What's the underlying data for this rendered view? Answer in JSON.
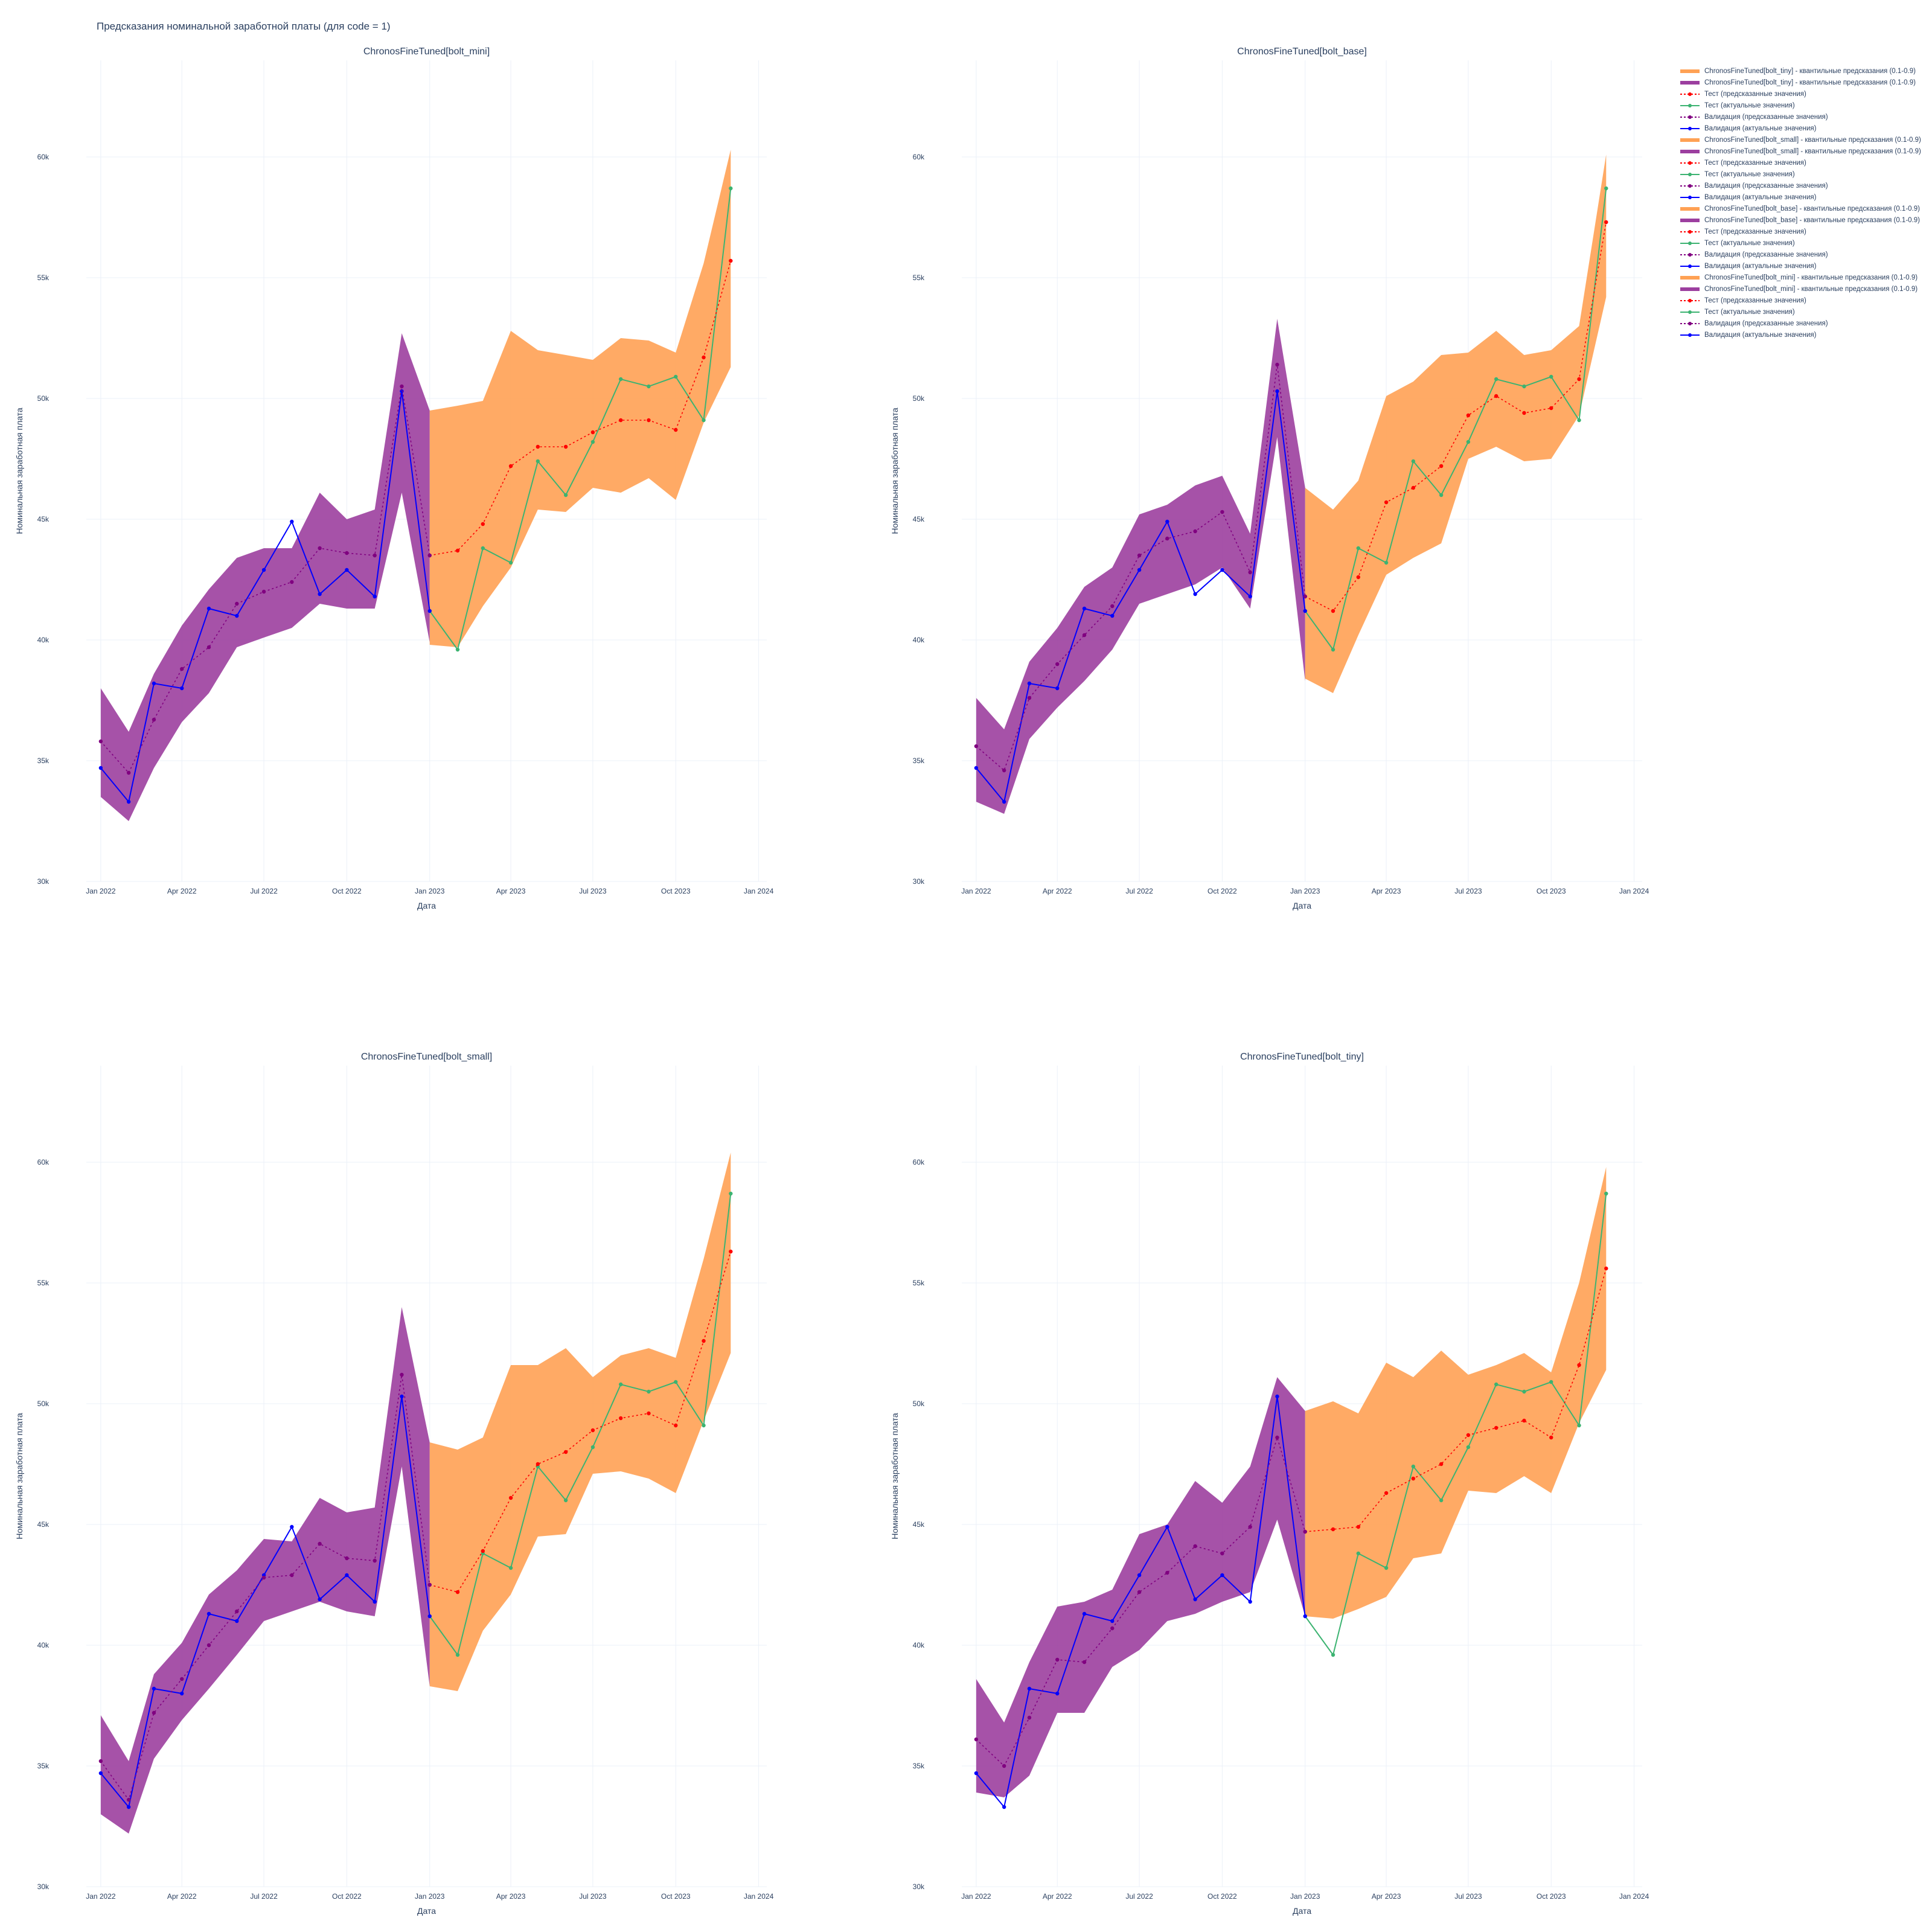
{
  "page_title": "Предсказания номинальной заработной платы (для code = 1)",
  "colors": {
    "validation_actual": "#0000ff",
    "validation_pred": "#800080",
    "validation_band": "#9c3f9f",
    "test_actual": "#3cb371",
    "test_pred": "#ff0000",
    "test_band": "#ffa154",
    "grid": "#ebf0f8",
    "text": "#2a3f5f"
  },
  "legend": [
    {
      "label": "ChronosFineTuned[bolt_tiny] - квантильные предсказания (0.1-0.9)",
      "kind": "band-test"
    },
    {
      "label": "ChronosFineTuned[bolt_tiny] - квантильные предсказания (0.1-0.9)",
      "kind": "band-val"
    },
    {
      "label": "Тест (предсказанные значения)",
      "kind": "test-pred"
    },
    {
      "label": "Тест (актуальные значения)",
      "kind": "test-actual"
    },
    {
      "label": "Валидация (предсказанные значения)",
      "kind": "val-pred"
    },
    {
      "label": "Валидация (актуальные значения)",
      "kind": "val-actual"
    },
    {
      "label": "ChronosFineTuned[bolt_small] - квантильные предсказания (0.1-0.9)",
      "kind": "band-test"
    },
    {
      "label": "ChronosFineTuned[bolt_small] - квантильные предсказания (0.1-0.9)",
      "kind": "band-val"
    },
    {
      "label": "Тест (предсказанные значения)",
      "kind": "test-pred"
    },
    {
      "label": "Тест (актуальные значения)",
      "kind": "test-actual"
    },
    {
      "label": "Валидация (предсказанные значения)",
      "kind": "val-pred"
    },
    {
      "label": "Валидация (актуальные значения)",
      "kind": "val-actual"
    },
    {
      "label": "ChronosFineTuned[bolt_base] - квантильные предсказания (0.1-0.9)",
      "kind": "band-test"
    },
    {
      "label": "ChronosFineTuned[bolt_base] - квантильные предсказания (0.1-0.9)",
      "kind": "band-val"
    },
    {
      "label": "Тест (предсказанные значения)",
      "kind": "test-pred"
    },
    {
      "label": "Тест (актуальные значения)",
      "kind": "test-actual"
    },
    {
      "label": "Валидация (предсказанные значения)",
      "kind": "val-pred"
    },
    {
      "label": "Валидация (актуальные значения)",
      "kind": "val-actual"
    },
    {
      "label": "ChronosFineTuned[bolt_mini] - квантильные предсказания (0.1-0.9)",
      "kind": "band-test"
    },
    {
      "label": "ChronosFineTuned[bolt_mini] - квантильные предсказания (0.1-0.9)",
      "kind": "band-val"
    },
    {
      "label": "Тест (предсказанные значения)",
      "kind": "test-pred"
    },
    {
      "label": "Тест (актуальные значения)",
      "kind": "test-actual"
    },
    {
      "label": "Валидация (предсказанные значения)",
      "kind": "val-pred"
    },
    {
      "label": "Валидация (актуальные значения)",
      "kind": "val-actual"
    }
  ],
  "chart_data": [
    {
      "type": "line",
      "title": "ChronosFineTuned[bolt_mini]",
      "xlabel": "Дата",
      "ylabel": "Номинальная заработная плата",
      "xlim": [
        "2021-12-16",
        "2024-01-10"
      ],
      "ylim": [
        30000,
        64000
      ],
      "x_ticks": [
        "2022-01-01",
        "2022-04-01",
        "2022-07-01",
        "2022-10-01",
        "2023-01-01",
        "2023-04-01",
        "2023-07-01",
        "2023-10-01",
        "2024-01-01"
      ],
      "x_tick_labels": [
        "Jan 2022",
        "Apr 2022",
        "Jul 2022",
        "Oct 2022",
        "Jan 2023",
        "Apr 2023",
        "Jul 2023",
        "Oct 2023",
        "Jan 2024"
      ],
      "y_ticks": [
        30000,
        35000,
        40000,
        45000,
        50000,
        55000,
        60000
      ],
      "y_tick_labels": [
        "30k",
        "35k",
        "40k",
        "45k",
        "50k",
        "55k",
        "60k"
      ],
      "grid": true,
      "validation_dates": [
        "2022-01-01",
        "2022-02-01",
        "2022-03-01",
        "2022-04-01",
        "2022-05-01",
        "2022-06-01",
        "2022-07-01",
        "2022-08-01",
        "2022-09-01",
        "2022-10-01",
        "2022-11-01",
        "2022-12-01",
        "2023-01-01"
      ],
      "test_dates": [
        "2023-01-01",
        "2023-02-01",
        "2023-03-01",
        "2023-04-01",
        "2023-05-01",
        "2023-06-01",
        "2023-07-01",
        "2023-08-01",
        "2023-09-01",
        "2023-10-01",
        "2023-11-01",
        "2023-12-01"
      ],
      "validation_actual": [
        34700,
        33300,
        38200,
        38000,
        41300,
        41000,
        42900,
        44900,
        41900,
        42900,
        41800,
        50300,
        41200
      ],
      "validation_pred": [
        35800,
        34500,
        36700,
        38800,
        39700,
        41500,
        42000,
        42400,
        43800,
        43600,
        43500,
        50500,
        43500
      ],
      "validation_lo": [
        33500,
        32500,
        34700,
        36600,
        37800,
        39700,
        40100,
        40500,
        41500,
        41300,
        41300,
        46100,
        39900
      ],
      "validation_hi": [
        38000,
        36200,
        38600,
        40600,
        42100,
        43400,
        43800,
        43800,
        46100,
        45000,
        45400,
        52700,
        49500
      ],
      "test_actual": [
        41200,
        39600,
        43800,
        43200,
        47400,
        46000,
        48200,
        50800,
        50500,
        50900,
        49100,
        58700
      ],
      "test_pred": [
        43500,
        43700,
        44800,
        47200,
        48000,
        48000,
        48600,
        49100,
        49100,
        48700,
        51700,
        55700
      ],
      "test_lo": [
        39800,
        39700,
        41400,
        43000,
        45400,
        45300,
        46300,
        46100,
        46700,
        45800,
        49000,
        51300
      ],
      "test_hi": [
        49500,
        49700,
        49900,
        52800,
        52000,
        51800,
        51600,
        52500,
        52400,
        51900,
        55600,
        60300
      ]
    },
    {
      "type": "line",
      "title": "ChronosFineTuned[bolt_base]",
      "xlabel": "Дата",
      "ylabel": "Номинальная заработная плата",
      "xlim": [
        "2021-12-16",
        "2024-01-10"
      ],
      "ylim": [
        30000,
        64000
      ],
      "x_ticks": [
        "2022-01-01",
        "2022-04-01",
        "2022-07-01",
        "2022-10-01",
        "2023-01-01",
        "2023-04-01",
        "2023-07-01",
        "2023-10-01",
        "2024-01-01"
      ],
      "x_tick_labels": [
        "Jan 2022",
        "Apr 2022",
        "Jul 2022",
        "Oct 2022",
        "Jan 2023",
        "Apr 2023",
        "Jul 2023",
        "Oct 2023",
        "Jan 2024"
      ],
      "y_ticks": [
        30000,
        35000,
        40000,
        45000,
        50000,
        55000,
        60000
      ],
      "y_tick_labels": [
        "30k",
        "35k",
        "40k",
        "45k",
        "50k",
        "55k",
        "60k"
      ],
      "grid": true,
      "validation_dates": [
        "2022-01-01",
        "2022-02-01",
        "2022-03-01",
        "2022-04-01",
        "2022-05-01",
        "2022-06-01",
        "2022-07-01",
        "2022-08-01",
        "2022-09-01",
        "2022-10-01",
        "2022-11-01",
        "2022-12-01",
        "2023-01-01"
      ],
      "test_dates": [
        "2023-01-01",
        "2023-02-01",
        "2023-03-01",
        "2023-04-01",
        "2023-05-01",
        "2023-06-01",
        "2023-07-01",
        "2023-08-01",
        "2023-09-01",
        "2023-10-01",
        "2023-11-01",
        "2023-12-01"
      ],
      "validation_actual": [
        34700,
        33300,
        38200,
        38000,
        41300,
        41000,
        42900,
        44900,
        41900,
        42900,
        41800,
        50300,
        41200
      ],
      "validation_pred": [
        35600,
        34600,
        37600,
        39000,
        40200,
        41400,
        43500,
        44200,
        44500,
        45300,
        42800,
        51400,
        41800
      ],
      "validation_lo": [
        33300,
        32800,
        35900,
        37200,
        38300,
        39600,
        41500,
        41900,
        42300,
        43000,
        41300,
        48400,
        38300
      ],
      "validation_hi": [
        37600,
        36300,
        39100,
        40500,
        42200,
        43000,
        45200,
        45600,
        46400,
        46800,
        44400,
        53300,
        46300
      ],
      "test_actual": [
        41200,
        39600,
        43800,
        43200,
        47400,
        46000,
        48200,
        50800,
        50500,
        50900,
        49100,
        58700
      ],
      "test_pred": [
        41800,
        41200,
        42600,
        45700,
        46300,
        47200,
        49300,
        50100,
        49400,
        49600,
        50800,
        57300
      ],
      "test_lo": [
        38400,
        37800,
        40200,
        42700,
        43400,
        44000,
        47500,
        48000,
        47400,
        47500,
        49300,
        54200
      ],
      "test_hi": [
        46300,
        45400,
        46600,
        50100,
        50700,
        51800,
        51900,
        52800,
        51800,
        52000,
        53000,
        60100
      ]
    },
    {
      "type": "line",
      "title": "ChronosFineTuned[bolt_small]",
      "xlabel": "Дата",
      "ylabel": "Номинальная заработная плата",
      "xlim": [
        "2021-12-16",
        "2024-01-10"
      ],
      "ylim": [
        30000,
        64000
      ],
      "x_ticks": [
        "2022-01-01",
        "2022-04-01",
        "2022-07-01",
        "2022-10-01",
        "2023-01-01",
        "2023-04-01",
        "2023-07-01",
        "2023-10-01",
        "2024-01-01"
      ],
      "x_tick_labels": [
        "Jan 2022",
        "Apr 2022",
        "Jul 2022",
        "Oct 2022",
        "Jan 2023",
        "Apr 2023",
        "Jul 2023",
        "Oct 2023",
        "Jan 2024"
      ],
      "y_ticks": [
        30000,
        35000,
        40000,
        45000,
        50000,
        55000,
        60000
      ],
      "y_tick_labels": [
        "30k",
        "35k",
        "40k",
        "45k",
        "50k",
        "55k",
        "60k"
      ],
      "grid": true,
      "validation_dates": [
        "2022-01-01",
        "2022-02-01",
        "2022-03-01",
        "2022-04-01",
        "2022-05-01",
        "2022-06-01",
        "2022-07-01",
        "2022-08-01",
        "2022-09-01",
        "2022-10-01",
        "2022-11-01",
        "2022-12-01",
        "2023-01-01"
      ],
      "test_dates": [
        "2023-01-01",
        "2023-02-01",
        "2023-03-01",
        "2023-04-01",
        "2023-05-01",
        "2023-06-01",
        "2023-07-01",
        "2023-08-01",
        "2023-09-01",
        "2023-10-01",
        "2023-11-01",
        "2023-12-01"
      ],
      "validation_actual": [
        34700,
        33300,
        38200,
        38000,
        41300,
        41000,
        42900,
        44900,
        41900,
        42900,
        41800,
        50300,
        41200
      ],
      "validation_pred": [
        35200,
        33600,
        37200,
        38600,
        40000,
        41400,
        42800,
        42900,
        44200,
        43600,
        43500,
        51200,
        42500
      ],
      "validation_lo": [
        33000,
        32200,
        35300,
        36900,
        38200,
        39600,
        41000,
        41400,
        41800,
        41400,
        41200,
        47400,
        38300
      ],
      "validation_hi": [
        37100,
        35200,
        38800,
        40100,
        42100,
        43100,
        44400,
        44300,
        46100,
        45500,
        45700,
        54000,
        48400
      ],
      "test_actual": [
        41200,
        39600,
        43800,
        43200,
        47400,
        46000,
        48200,
        50800,
        50500,
        50900,
        49100,
        58700
      ],
      "test_pred": [
        42500,
        42200,
        43900,
        46100,
        47500,
        48000,
        48900,
        49400,
        49600,
        49100,
        52600,
        56300
      ],
      "test_lo": [
        38300,
        38100,
        40600,
        42100,
        44500,
        44600,
        47100,
        47200,
        46900,
        46300,
        49300,
        52100
      ],
      "test_hi": [
        48400,
        48100,
        48600,
        51600,
        51600,
        52300,
        51100,
        52000,
        52300,
        51900,
        56000,
        60400
      ]
    },
    {
      "type": "line",
      "title": "ChronosFineTuned[bolt_tiny]",
      "xlabel": "Дата",
      "ylabel": "Номинальная заработная плата",
      "xlim": [
        "2021-12-16",
        "2024-01-10"
      ],
      "ylim": [
        30000,
        64000
      ],
      "x_ticks": [
        "2022-01-01",
        "2022-04-01",
        "2022-07-01",
        "2022-10-01",
        "2023-01-01",
        "2023-04-01",
        "2023-07-01",
        "2023-10-01",
        "2024-01-01"
      ],
      "x_tick_labels": [
        "Jan 2022",
        "Apr 2022",
        "Jul 2022",
        "Oct 2022",
        "Jan 2023",
        "Apr 2023",
        "Jul 2023",
        "Oct 2023",
        "Jan 2024"
      ],
      "y_ticks": [
        30000,
        35000,
        40000,
        45000,
        50000,
        55000,
        60000
      ],
      "y_tick_labels": [
        "30k",
        "35k",
        "40k",
        "45k",
        "50k",
        "55k",
        "60k"
      ],
      "grid": true,
      "validation_dates": [
        "2022-01-01",
        "2022-02-01",
        "2022-03-01",
        "2022-04-01",
        "2022-05-01",
        "2022-06-01",
        "2022-07-01",
        "2022-08-01",
        "2022-09-01",
        "2022-10-01",
        "2022-11-01",
        "2022-12-01",
        "2023-01-01"
      ],
      "test_dates": [
        "2023-01-01",
        "2023-02-01",
        "2023-03-01",
        "2023-04-01",
        "2023-05-01",
        "2023-06-01",
        "2023-07-01",
        "2023-08-01",
        "2023-09-01",
        "2023-10-01",
        "2023-11-01",
        "2023-12-01"
      ],
      "validation_actual": [
        34700,
        33300,
        38200,
        38000,
        41300,
        41000,
        42900,
        44900,
        41900,
        42900,
        41800,
        50300,
        41200
      ],
      "validation_pred": [
        36100,
        35000,
        37000,
        39400,
        39300,
        40700,
        42200,
        43000,
        44100,
        43800,
        44900,
        48600,
        44700
      ],
      "validation_lo": [
        33900,
        33700,
        34600,
        37200,
        37200,
        39100,
        39800,
        41000,
        41300,
        41800,
        42200,
        45200,
        41200
      ],
      "validation_hi": [
        38600,
        36800,
        39300,
        41600,
        41800,
        42300,
        44600,
        45000,
        46800,
        45900,
        47400,
        51100,
        49700
      ],
      "test_actual": [
        41200,
        39600,
        43800,
        43200,
        47400,
        46000,
        48200,
        50800,
        50500,
        50900,
        49100,
        58700
      ],
      "test_pred": [
        44700,
        44800,
        44900,
        46300,
        46900,
        47500,
        48700,
        49000,
        49300,
        48600,
        51600,
        55600
      ],
      "test_lo": [
        41200,
        41100,
        41500,
        42000,
        43600,
        43800,
        46400,
        46300,
        47000,
        46300,
        49200,
        51400
      ],
      "test_hi": [
        49700,
        50100,
        49600,
        51700,
        51100,
        52200,
        51200,
        51600,
        52100,
        51300,
        55000,
        59800
      ]
    }
  ]
}
